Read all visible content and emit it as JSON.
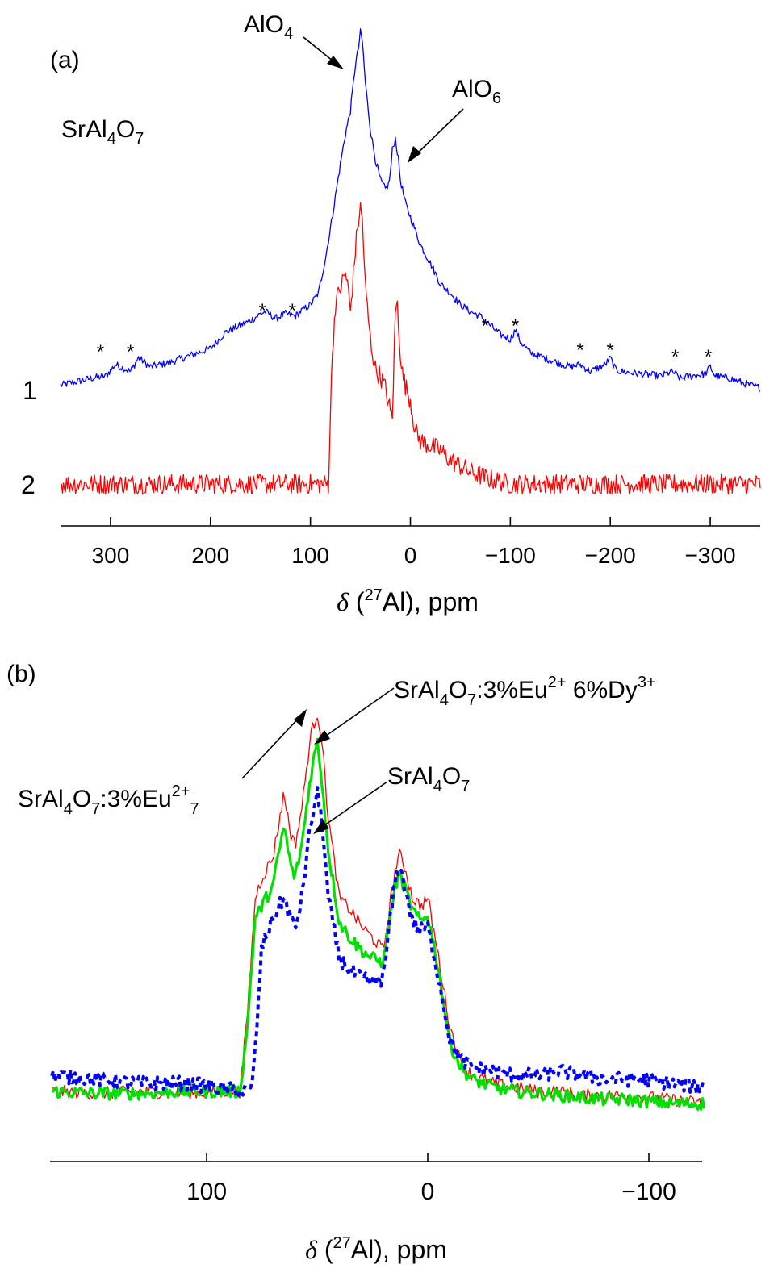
{
  "chart_data": [
    {
      "panel_label": "(a)",
      "type": "line",
      "sample_label": {
        "main": "SrAl",
        "sub1": "4",
        "mid": "O",
        "sub2": "7"
      },
      "xlabel": {
        "symbol": "δ",
        "open": " (",
        "iso": "27",
        "rest": "Al), ppm"
      },
      "xlim": [
        350,
        -350
      ],
      "xticks": [
        300,
        200,
        100,
        0,
        -100,
        -200,
        -300
      ],
      "xtick_labels": [
        "300",
        "200",
        "100",
        "0",
        "−100",
        "−200",
        "−300"
      ],
      "y_axis_shown": false,
      "grid": false,
      "series": [
        {
          "name": "1",
          "color": "#0000ff",
          "x": [
            350,
            320,
            305,
            295,
            280,
            272,
            260,
            240,
            220,
            200,
            185,
            175,
            160,
            150,
            145,
            135,
            125,
            115,
            110,
            100,
            92,
            85,
            80,
            75,
            70,
            65,
            60,
            55,
            52,
            50,
            48,
            45,
            40,
            35,
            30,
            25,
            22,
            20,
            18,
            15,
            12,
            10,
            5,
            0,
            -10,
            -20,
            -30,
            -40,
            -50,
            -60,
            -70,
            -80,
            -90,
            -100,
            -105,
            -110,
            -120,
            -140,
            -160,
            -170,
            -180,
            -190,
            -195,
            -200,
            -205,
            -210,
            -230,
            -250,
            -262,
            -270,
            -280,
            -295,
            -300,
            -305,
            -320,
            -340,
            -350
          ],
          "y": [
            5,
            8,
            9,
            14,
            11,
            17,
            13,
            15,
            18,
            21,
            28,
            30,
            33,
            36,
            37,
            34,
            36,
            35,
            37,
            40,
            45,
            60,
            73,
            87,
            101,
            114,
            124,
            144,
            151,
            158,
            154,
            136,
            116,
            103,
            94,
            90,
            92,
            97,
            107,
            112,
            103,
            94,
            84,
            78,
            66,
            58,
            49,
            45,
            40,
            37,
            35,
            31,
            27,
            25,
            29,
            24,
            19,
            16,
            13,
            14,
            11,
            13,
            14,
            17,
            12,
            11,
            10,
            9,
            11,
            8,
            9,
            10,
            13,
            9,
            8,
            5,
            4
          ]
        },
        {
          "name": "2",
          "color": "#ff0000",
          "x": [
            350,
            300,
            250,
            200,
            150,
            120,
            100,
            90,
            82,
            80,
            78,
            75,
            70,
            65,
            63,
            60,
            55,
            52,
            50,
            48,
            45,
            40,
            35,
            30,
            25,
            20,
            18,
            15,
            13,
            12,
            10,
            8,
            5,
            0,
            -5,
            -10,
            -20,
            -30,
            -40,
            -60,
            -80,
            -100,
            -150,
            -200,
            -250,
            -300,
            -350
          ],
          "y": [
            0,
            0,
            0,
            0,
            0,
            0,
            0,
            0,
            0,
            30,
            55,
            75,
            82,
            88,
            84,
            72,
            98,
            110,
            115,
            110,
            82,
            60,
            48,
            45,
            40,
            30,
            28,
            72,
            75,
            68,
            55,
            46,
            41,
            35,
            22,
            18,
            16,
            14,
            10,
            5,
            2,
            0,
            0,
            0,
            0,
            0,
            0
          ]
        }
      ],
      "annotations": [
        {
          "label": "AlO",
          "sub": "4",
          "x": 55
        },
        {
          "label": "AlO",
          "sub": "6",
          "x": 13
        },
        {
          "label": "*",
          "spinning_sideband": true,
          "x": [
            310,
            280,
            148,
            118,
            -75,
            -105,
            -170,
            -200,
            -265,
            -298
          ]
        }
      ]
    },
    {
      "panel_label": "(b)",
      "type": "line",
      "xlabel": {
        "symbol": "δ",
        "open": " (",
        "iso": "27",
        "rest": "Al), ppm"
      },
      "xlim": [
        170,
        -125
      ],
      "xticks": [
        100,
        0,
        -100
      ],
      "xtick_labels": [
        "100",
        "0",
        "−100"
      ],
      "y_axis_shown": false,
      "grid": false,
      "series": [
        {
          "name": "SrAl4O7:3%Eu2+7",
          "color": "#ff0000",
          "line_style": "solid",
          "x": [
            170,
            150,
            130,
            110,
            95,
            85,
            82,
            78,
            75,
            70,
            65,
            62,
            60,
            57,
            53,
            50,
            48,
            45,
            40,
            35,
            30,
            25,
            20,
            18,
            15,
            13,
            10,
            7,
            3,
            0,
            -5,
            -10,
            -15,
            -20,
            -30,
            -40,
            -50,
            -60,
            -70,
            -80,
            -90,
            -100,
            -110,
            -125
          ],
          "y": [
            2,
            1.5,
            2,
            1.5,
            2,
            2,
            18,
            50,
            55,
            60,
            76,
            66,
            63,
            72,
            90,
            96,
            90,
            70,
            50,
            47,
            43,
            40,
            37,
            45,
            56,
            61,
            57,
            50,
            48,
            50,
            35,
            18,
            9,
            6,
            4,
            3,
            2,
            2,
            1,
            1,
            1,
            0.5,
            0,
            -1
          ]
        },
        {
          "name": "SrAl4O7:3%Eu2+ 6%Dy3+",
          "color": "#00e000",
          "line_style": "solid",
          "x": [
            170,
            150,
            130,
            110,
            95,
            85,
            82,
            78,
            75,
            70,
            65,
            62,
            60,
            57,
            53,
            50,
            48,
            45,
            40,
            35,
            30,
            25,
            20,
            18,
            15,
            13,
            10,
            7,
            3,
            0,
            -5,
            -10,
            -15,
            -20,
            -30,
            -40,
            -50,
            -60,
            -70,
            -80,
            -90,
            -100,
            -110,
            -125
          ],
          "y": [
            2,
            1.5,
            1.5,
            2,
            2,
            2,
            15,
            45,
            48,
            53,
            68,
            58,
            55,
            63,
            80,
            89,
            80,
            62,
            44,
            40,
            37,
            35,
            34,
            42,
            52,
            56,
            52,
            47,
            44,
            46,
            32,
            14,
            8,
            5,
            3,
            2,
            1.5,
            1,
            0.5,
            0,
            0,
            -0.5,
            -1,
            -1
          ]
        },
        {
          "name": "SrAl4O7",
          "color": "#0000ff",
          "line_style": "dotted",
          "x": [
            170,
            150,
            130,
            110,
            95,
            85,
            80,
            78,
            75,
            70,
            65,
            62,
            60,
            57,
            53,
            50,
            48,
            45,
            40,
            35,
            30,
            25,
            20,
            18,
            15,
            13,
            10,
            7,
            3,
            0,
            -5,
            -10,
            -15,
            -20,
            -30,
            -40,
            -50,
            -60,
            -70,
            -80,
            -90,
            -100,
            -110,
            -125
          ],
          "y": [
            6,
            5,
            4,
            4,
            3,
            2,
            2,
            12,
            38,
            45,
            50,
            45,
            42,
            50,
            68,
            76,
            70,
            50,
            35,
            32,
            30,
            29,
            30,
            40,
            53,
            58,
            52,
            44,
            42,
            43,
            30,
            15,
            10,
            8,
            7,
            6,
            6,
            7,
            6,
            5,
            5,
            5,
            4,
            3
          ]
        }
      ],
      "annotations": [
        {
          "target_series": 0,
          "parts": [
            {
              "t": "SrAl"
            },
            {
              "t": "4",
              "s": "sub"
            },
            {
              "t": "O"
            },
            {
              "t": "7",
              "s": "sub"
            },
            {
              "t": ":3%Eu"
            },
            {
              "t": "2+",
              "s": "sup"
            },
            {
              "t": "7",
              "s": "sub"
            }
          ]
        },
        {
          "target_series": 1,
          "parts": [
            {
              "t": "SrAl"
            },
            {
              "t": "4",
              "s": "sub"
            },
            {
              "t": "O"
            },
            {
              "t": "7",
              "s": "sub"
            },
            {
              "t": ":3%Eu"
            },
            {
              "t": "2+",
              "s": "sup"
            },
            {
              "t": " 6%Dy"
            },
            {
              "t": "3+",
              "s": "sup"
            }
          ]
        },
        {
          "target_series": 2,
          "parts": [
            {
              "t": "SrAl"
            },
            {
              "t": "4",
              "s": "sub"
            },
            {
              "t": "O"
            },
            {
              "t": "7",
              "s": "sub"
            }
          ]
        }
      ]
    }
  ]
}
